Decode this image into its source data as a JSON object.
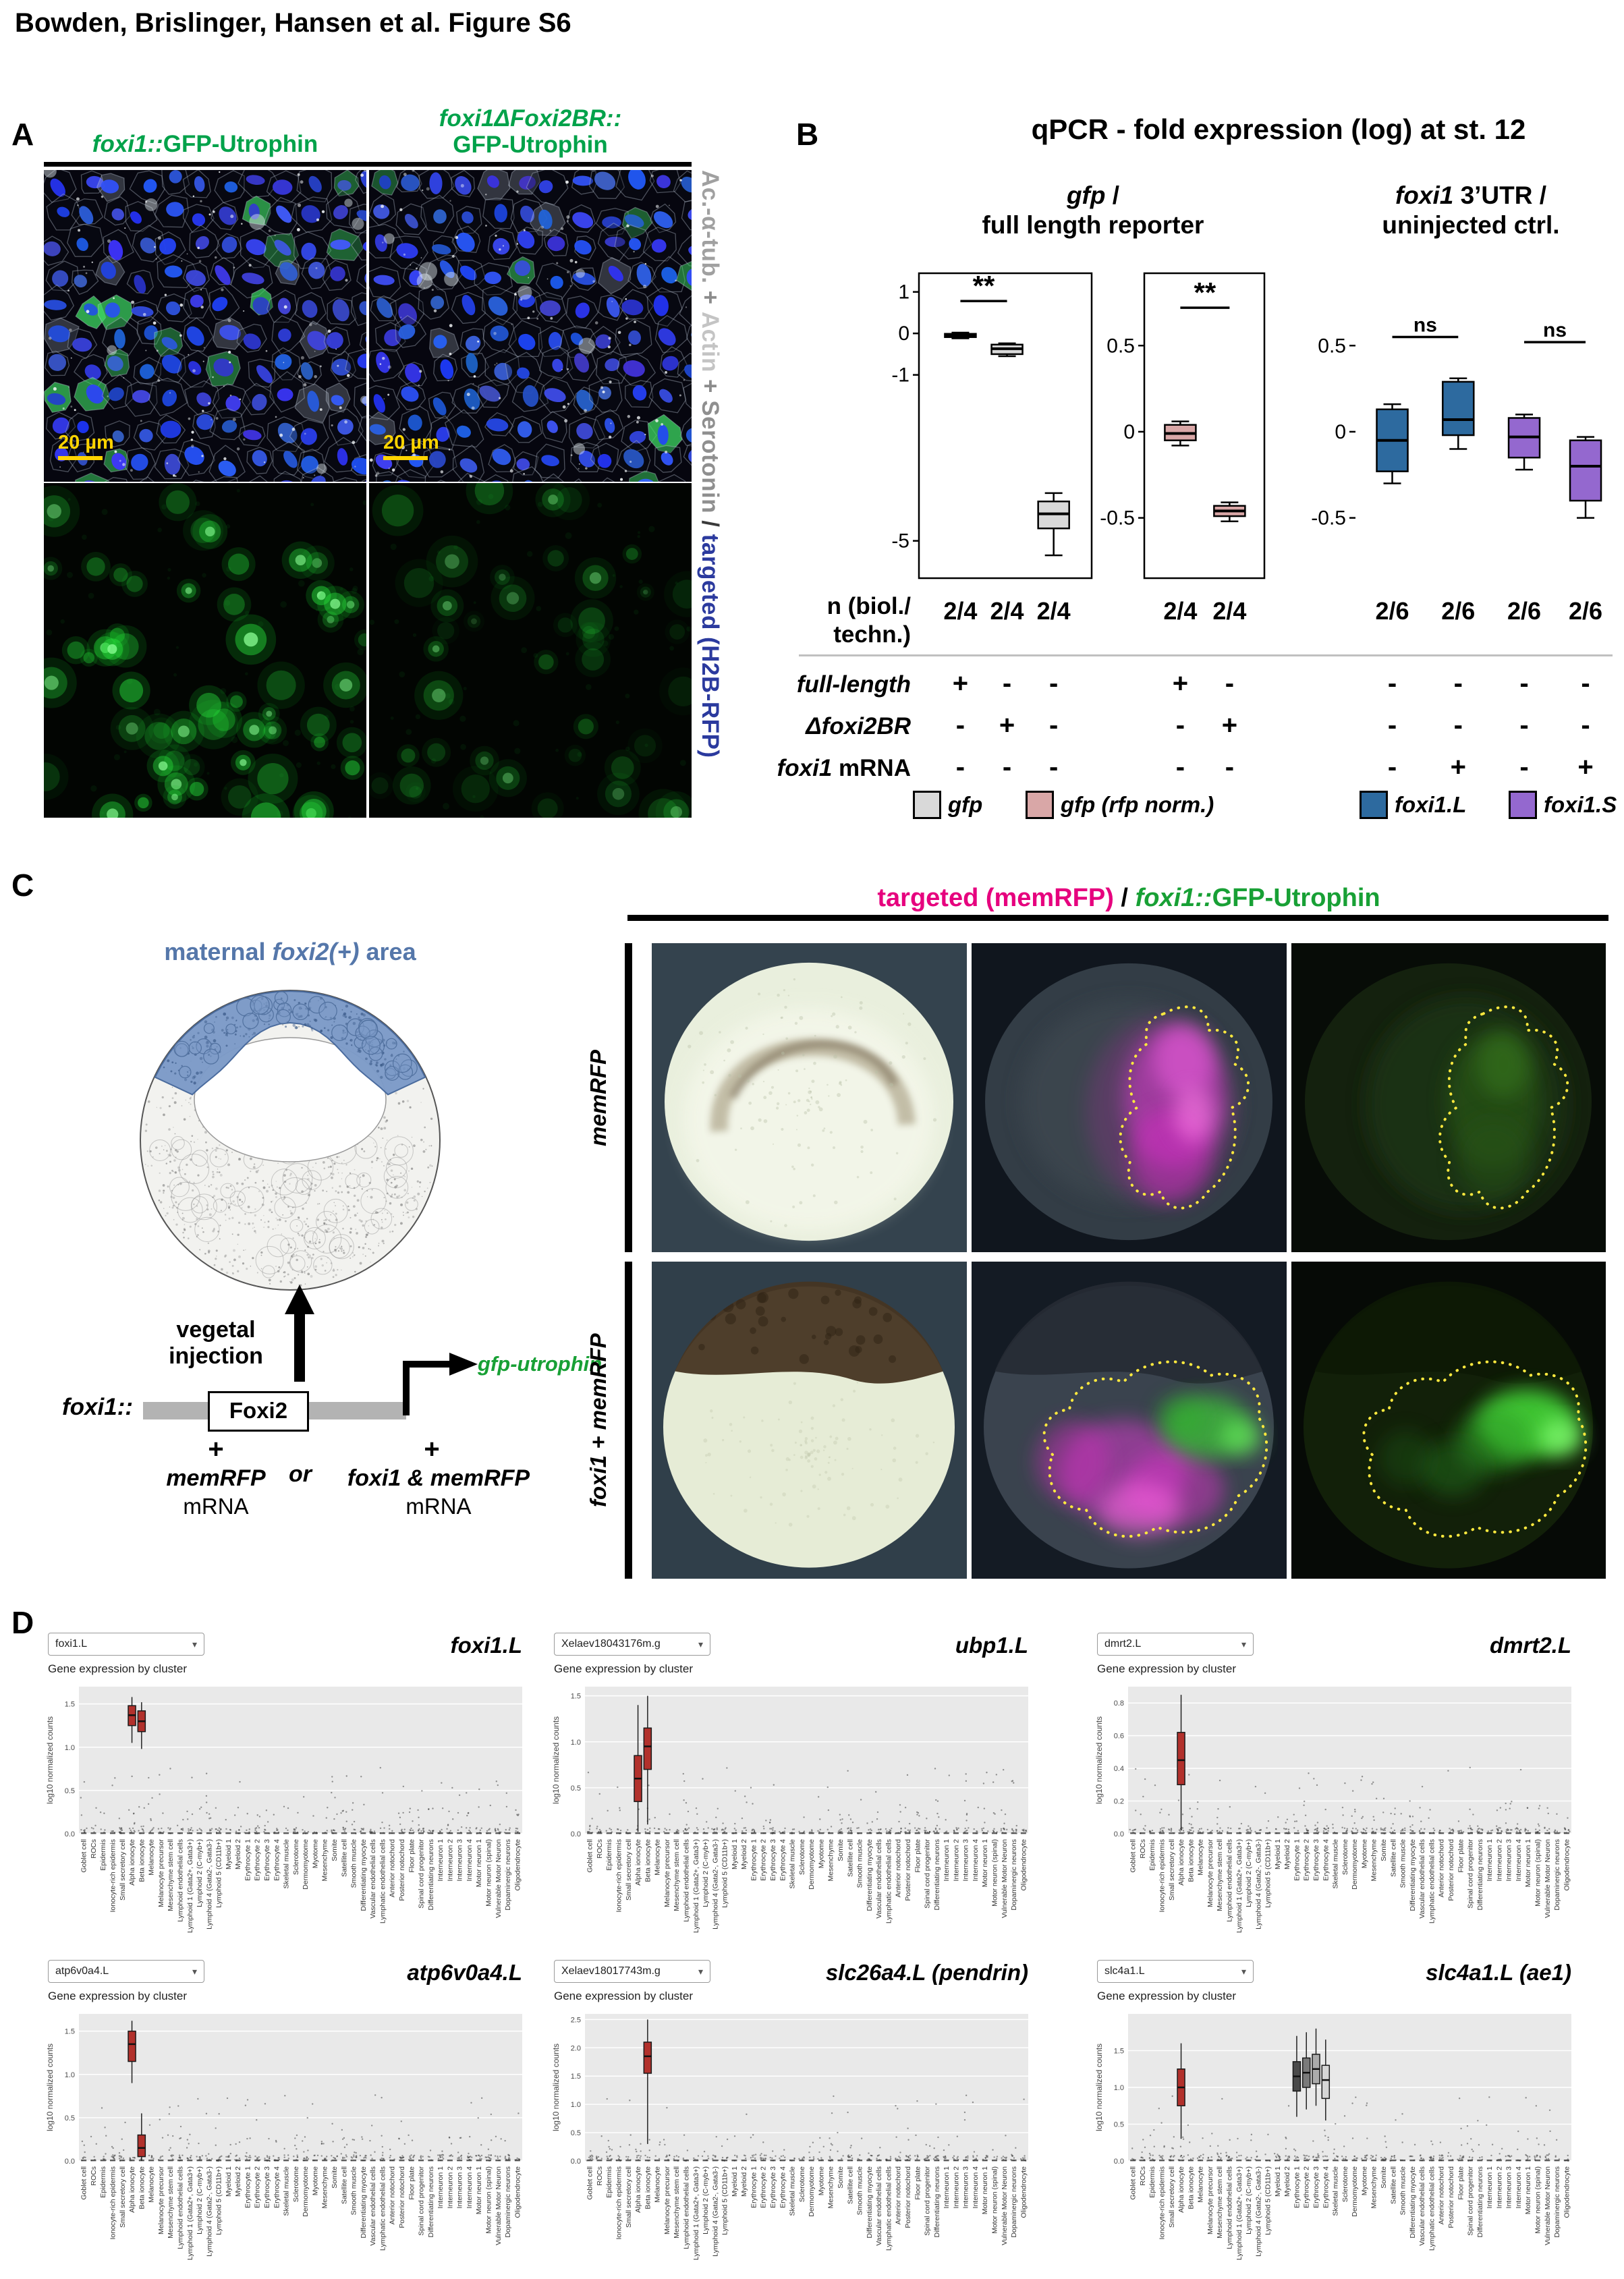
{
  "figure_title": "Bowden, Brislinger, Hansen et al. Figure S6",
  "panelA": {
    "label": "A",
    "col1_title_italic": "foxi1::",
    "col1_title_rest": "GFP-Utrophin",
    "col2_title_line1": "foxi1ΔFoxi2BR::",
    "col2_title_line2": "GFP-Utrophin",
    "title_color": "#00a24a",
    "scale_bar": "20 µm",
    "side_label": [
      {
        "text": "Ac.-α-tub.",
        "color": "#a0a0a0"
      },
      {
        "text": " + ",
        "color": "#8c8c8c"
      },
      {
        "text": "Actin",
        "color": "#c4c4c4"
      },
      {
        "text": " + ",
        "color": "#8c8c8c"
      },
      {
        "text": "Serotonin",
        "color": "#8f8f8f"
      },
      {
        "text": " / ",
        "color": "#3a3a3a"
      },
      {
        "text": "targeted (H2B-RFP)",
        "color": "#2b3a9e"
      }
    ]
  },
  "panelB": {
    "label": "B",
    "title": "qPCR - fold expression (log) at st. 12",
    "subtitle_left": {
      "italic": "gfp",
      "rest": " /",
      "line2": "full length reporter"
    },
    "subtitle_right": {
      "italic": "foxi1",
      "rest": " 3’UTR /",
      "line2": "uninjected ctrl."
    },
    "n_label_line1": "n (biol./",
    "n_label_line2": "techn.)",
    "row_labels": {
      "full_length": "full-length",
      "dfoxi2br": "Δfoxi2BR",
      "foxi1": "foxi1",
      "mrna": " mRNA"
    },
    "n_values": [
      "2/4",
      "2/4",
      "2/4",
      "2/4",
      "2/4",
      "2/6",
      "2/6",
      "2/6",
      "2/6"
    ],
    "full_length_values": [
      "+",
      "-",
      "-",
      "+",
      "-",
      "-",
      "-",
      "-",
      "-"
    ],
    "dfoxi2br_values": [
      "-",
      "+",
      "-",
      "-",
      "+",
      "-",
      "-",
      "-",
      "-"
    ],
    "foxi1_mrna_values": [
      "-",
      "-",
      "-",
      "-",
      "-",
      "-",
      "+",
      "-",
      "+"
    ],
    "legend": [
      {
        "label": "gfp",
        "color": "#d9d9d9"
      },
      {
        "label": "gfp (rfp norm.)",
        "color": "#d9a7a7"
      },
      {
        "label": "foxi1.L",
        "color": "#2d6a9f"
      },
      {
        "label": "foxi1.S",
        "color": "#9468cf"
      }
    ],
    "plots": [
      {
        "yticks": [
          1,
          0,
          -1,
          -5
        ],
        "ylim": [
          1.45,
          -5.9
        ],
        "sig": [
          {
            "a": 0,
            "b": 1,
            "label": "**",
            "y": 0.78
          }
        ],
        "boxes": [
          {
            "color": "#d9d9d9",
            "wl": -0.12,
            "q1": -0.09,
            "med": -0.05,
            "q3": -0.01,
            "wh": 0.02
          },
          {
            "color": "#d9d9d9",
            "wl": -0.55,
            "q1": -0.5,
            "med": -0.37,
            "q3": -0.27,
            "wh": -0.24
          },
          {
            "color": "#d9d9d9",
            "wl": -5.35,
            "q1": -4.7,
            "med": -4.35,
            "q3": -4.05,
            "wh": -3.85
          }
        ]
      },
      {
        "yticks": [
          0.5,
          0,
          -0.5
        ],
        "ylim": [
          0.92,
          -0.85
        ],
        "sig": [
          {
            "a": 0,
            "b": 1,
            "label": "**",
            "y": 0.72
          }
        ],
        "boxes": [
          {
            "color": "#d9a7a7",
            "wl": -0.08,
            "q1": -0.05,
            "med": -0.01,
            "q3": 0.04,
            "wh": 0.06
          },
          {
            "color": "#d9a7a7",
            "wl": -0.52,
            "q1": -0.49,
            "med": -0.46,
            "q3": -0.43,
            "wh": -0.41
          }
        ]
      },
      {
        "yticks": [
          0.5,
          0,
          -0.5
        ],
        "ylim": [
          0.92,
          -0.85
        ],
        "sig": [
          {
            "a": 0,
            "b": 1,
            "label": "ns",
            "y": 0.55
          },
          {
            "a": 2,
            "b": 3,
            "label": "ns",
            "y": 0.52
          }
        ],
        "boxes": [
          {
            "color": "#2d6a9f",
            "wl": -0.3,
            "q1": -0.23,
            "med": -0.05,
            "q3": 0.13,
            "wh": 0.16
          },
          {
            "color": "#2d6a9f",
            "wl": -0.1,
            "q1": -0.02,
            "med": 0.07,
            "q3": 0.29,
            "wh": 0.31
          },
          {
            "color": "#9468cf",
            "wl": -0.22,
            "q1": -0.15,
            "med": -0.03,
            "q3": 0.08,
            "wh": 0.1
          },
          {
            "color": "#9468cf",
            "wl": -0.5,
            "q1": -0.4,
            "med": -0.2,
            "q3": -0.05,
            "wh": -0.03
          }
        ]
      }
    ]
  },
  "panelC": {
    "label": "C",
    "maternal_pre": "maternal ",
    "maternal_gene": "foxi2(+)",
    "maternal_post": " area",
    "injection_line1": "vegetal",
    "injection_line2": "injection",
    "construct_promoter": "foxi1::",
    "construct_box": "Foxi2",
    "construct_reporter": "gfp-utrophin",
    "plus_left": "+",
    "plus_right": "+",
    "or_label": "or",
    "mix_left_line1": "memRFP",
    "mix_left_line2": "mRNA",
    "mix_right_line1": "foxi1 & memRFP",
    "mix_right_line2": "mRNA",
    "header_magenta": "targeted (memRFP)",
    "header_sep": " / ",
    "header_green_italic": "foxi1::",
    "header_green_rest": "GFP-Utrophin",
    "row1_label": "memRFP",
    "row2_label": "foxi1 + memRFP",
    "colors": {
      "magenta": "#e6007e",
      "green": "#18a035",
      "blue": "#5577aa"
    }
  },
  "panelD": {
    "label": "D",
    "plot_subtitle": "Gene expression by cluster",
    "ylabel": "log10 normalized counts",
    "clusters": [
      "Goblet cell",
      "ROCs",
      "Epidermis",
      "Ionocyte-rich epidermis",
      "Small secretory cell",
      "Alpha ionocyte",
      "Beta ionocyte",
      "Melanocyte",
      "Melanocyte precursor",
      "Mesenchyme stem cell",
      "Lymphoid endothelial cells",
      "Lymphoid 1 (Gata2+, Gata3+)",
      "Lymphoid 2 (C-myb+)",
      "Lymphoid 4 (Gata2-, Gata3-)",
      "Lymphoid 5 (CD11b+)",
      "Myeloid 1",
      "Myeloid 2",
      "Erythrocyte 1",
      "Erythrocyte 2",
      "Erythrocyte 3",
      "Erythrocyte 4",
      "Skeletal muscle",
      "Sclerotome",
      "Dermomyotome",
      "Myotome",
      "Mesenchyme",
      "Somite",
      "Satellite cell",
      "Smooth muscle",
      "Differentiating myocyte",
      "Vascular endothelial cells",
      "Lymphatic endothelial cells",
      "Anterior notochord",
      "Posterior notochord",
      "Floor plate",
      "Spinal cord progenitor",
      "Differentiating neurons",
      "Interneuron 1",
      "Interneuron 2",
      "Interneuron 3",
      "Interneuron 4",
      "Motor neuron 1",
      "Motor neuron (spinal)",
      "Vulnerable Motor Neuron",
      "Dopaminergic neurons",
      "Oligodendrocyte"
    ],
    "panels": [
      {
        "dropdown": "foxi1.L",
        "title": "foxi1.L",
        "ymax": 1.7,
        "yticks": [
          0.0,
          0.5,
          1.0,
          1.5
        ],
        "boxes": [
          {
            "c": 5,
            "color": "#b2312c",
            "wl": 1.05,
            "q1": 1.25,
            "med": 1.37,
            "q3": 1.48,
            "wh": 1.58
          },
          {
            "c": 6,
            "color": "#b2312c",
            "wl": 0.98,
            "q1": 1.18,
            "med": 1.3,
            "q3": 1.42,
            "wh": 1.52
          }
        ]
      },
      {
        "dropdown": "Xelaev18043176m.g",
        "title": "ubp1.L",
        "ymax": 1.6,
        "yticks": [
          0.0,
          0.5,
          1.0,
          1.5
        ],
        "boxes": [
          {
            "c": 5,
            "color": "#b2312c",
            "wl": 0.02,
            "q1": 0.35,
            "med": 0.6,
            "q3": 0.85,
            "wh": 1.4
          },
          {
            "c": 6,
            "color": "#b2312c",
            "wl": 0.1,
            "q1": 0.7,
            "med": 0.95,
            "q3": 1.15,
            "wh": 1.5
          }
        ]
      },
      {
        "dropdown": "dmrt2.L",
        "title": "dmrt2.L",
        "ymax": 0.9,
        "yticks": [
          0.0,
          0.2,
          0.4,
          0.6,
          0.8
        ],
        "boxes": [
          {
            "c": 5,
            "color": "#b2312c",
            "wl": 0.02,
            "q1": 0.3,
            "med": 0.45,
            "q3": 0.62,
            "wh": 0.85
          }
        ]
      },
      {
        "dropdown": "atp6v0a4.L",
        "title": "atp6v0a4.L",
        "ymax": 1.7,
        "yticks": [
          0.0,
          0.5,
          1.0,
          1.5
        ],
        "boxes": [
          {
            "c": 5,
            "color": "#b2312c",
            "wl": 0.9,
            "q1": 1.15,
            "med": 1.35,
            "q3": 1.5,
            "wh": 1.62
          },
          {
            "c": 6,
            "color": "#b2312c",
            "wl": 0.0,
            "q1": 0.05,
            "med": 0.15,
            "q3": 0.3,
            "wh": 0.55
          }
        ]
      },
      {
        "dropdown": "Xelaev18017743m.g",
        "title": "slc26a4.L (pendrin)",
        "ymax": 2.6,
        "yticks": [
          0.0,
          0.5,
          1.0,
          1.5,
          2.0,
          2.5
        ],
        "boxes": [
          {
            "c": 6,
            "color": "#b2312c",
            "wl": 0.3,
            "q1": 1.55,
            "med": 1.85,
            "q3": 2.1,
            "wh": 2.5
          }
        ]
      },
      {
        "dropdown": "slc4a1.L",
        "title": "slc4a1.L (ae1)",
        "ymax": 2.0,
        "yticks": [
          0.0,
          0.5,
          1.0,
          1.5
        ],
        "boxes": [
          {
            "c": 5,
            "color": "#b2312c",
            "wl": 0.3,
            "q1": 0.75,
            "med": 1.0,
            "q3": 1.25,
            "wh": 1.6
          },
          {
            "c": 17,
            "color": "#4a4a4a",
            "wl": 0.6,
            "q1": 0.95,
            "med": 1.15,
            "q3": 1.35,
            "wh": 1.7
          },
          {
            "c": 18,
            "color": "#7a7a7a",
            "wl": 0.7,
            "q1": 1.0,
            "med": 1.2,
            "q3": 1.4,
            "wh": 1.75
          },
          {
            "c": 19,
            "color": "#ababab",
            "wl": 0.75,
            "q1": 1.05,
            "med": 1.25,
            "q3": 1.45,
            "wh": 1.8
          },
          {
            "c": 20,
            "color": "#d6d6d6",
            "wl": 0.55,
            "q1": 0.85,
            "med": 1.1,
            "q3": 1.3,
            "wh": 1.65
          }
        ]
      }
    ]
  }
}
